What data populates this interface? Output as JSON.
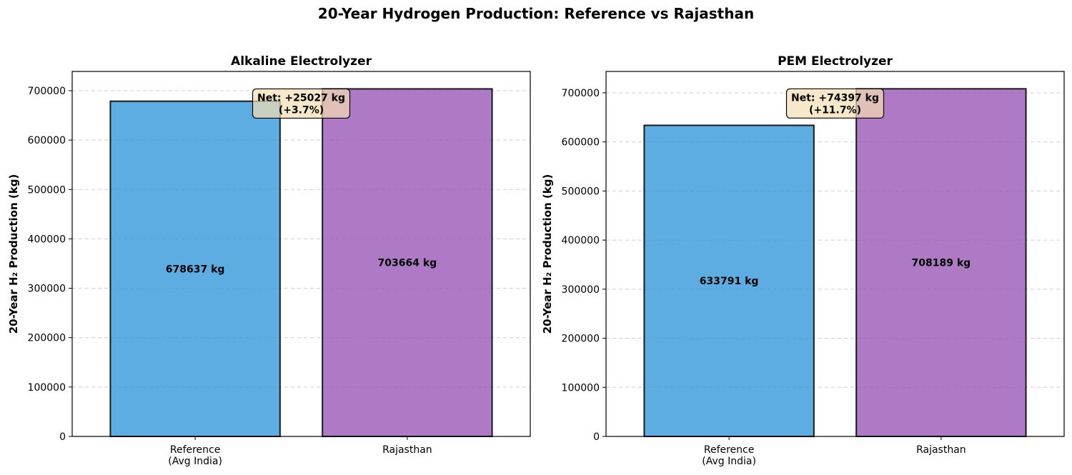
{
  "figure_title": "20-Year Hydrogen Production: Reference vs Rajasthan",
  "colors": {
    "reference": "#3498db",
    "rajasthan": "#9b59b6",
    "annotation_fill": "#f5deb3"
  },
  "chart_data": [
    {
      "type": "bar",
      "title": "Alkaline Electrolyzer",
      "ylabel": "20-Year H₂ Production (kg)",
      "categories": [
        [
          "Reference",
          "(Avg India)"
        ],
        [
          "Rajasthan"
        ]
      ],
      "values": [
        678637,
        703664
      ],
      "data_labels": [
        "678637 kg",
        "703664 kg"
      ],
      "annotation": [
        "Net: +25027 kg",
        "(+3.7%)"
      ],
      "ylim": [
        0,
        739000
      ],
      "yticks": [
        0,
        100000,
        200000,
        300000,
        400000,
        500000,
        600000,
        700000
      ],
      "grid": "y-dashed"
    },
    {
      "type": "bar",
      "title": "PEM Electrolyzer",
      "ylabel": "20-Year H₂ Production (kg)",
      "categories": [
        [
          "Reference",
          "(Avg India)"
        ],
        [
          "Rajasthan"
        ]
      ],
      "values": [
        633791,
        708189
      ],
      "data_labels": [
        "633791 kg",
        "708189 kg"
      ],
      "annotation": [
        "Net: +74397 kg",
        "(+11.7%)"
      ],
      "ylim": [
        0,
        743600
      ],
      "yticks": [
        0,
        100000,
        200000,
        300000,
        400000,
        500000,
        600000,
        700000
      ],
      "grid": "y-dashed"
    }
  ]
}
